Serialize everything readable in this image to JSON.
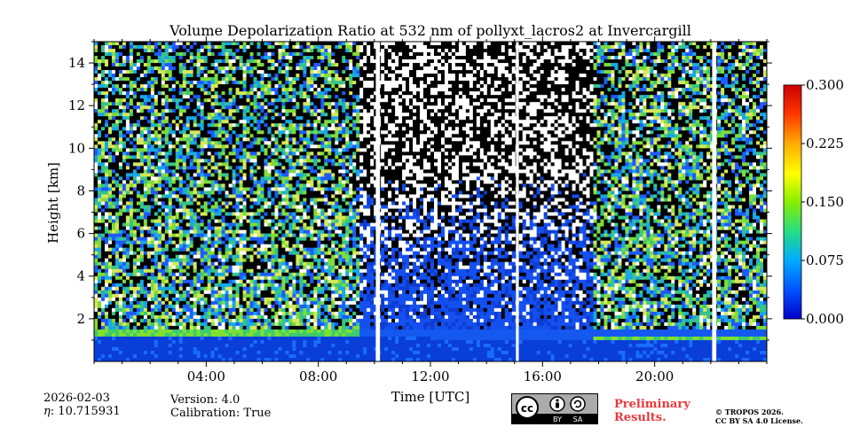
{
  "chart_data": {
    "type": "heatmap",
    "title": "Volume Depolarization Ratio at 532 nm of pollyxt_lacros2 at Invercargill",
    "xlabel": "Time [UTC]",
    "ylabel": "Height [km]",
    "xlim_hours": [
      0,
      24
    ],
    "ylim_km": [
      0,
      15
    ],
    "x_ticks": [
      {
        "hour": 4,
        "label": "04:00"
      },
      {
        "hour": 8,
        "label": "08:00"
      },
      {
        "hour": 12,
        "label": "12:00"
      },
      {
        "hour": 16,
        "label": "16:00"
      },
      {
        "hour": 20,
        "label": "20:00"
      }
    ],
    "y_ticks": [
      {
        "km": 2,
        "label": "2"
      },
      {
        "km": 4,
        "label": "4"
      },
      {
        "km": 6,
        "label": "6"
      },
      {
        "km": 8,
        "label": "8"
      },
      {
        "km": 10,
        "label": "10"
      },
      {
        "km": 12,
        "label": "12"
      },
      {
        "km": 14,
        "label": "14"
      }
    ],
    "colorbar": {
      "min": 0.0,
      "max": 0.3,
      "ticks": [
        "0.000",
        "0.075",
        "0.150",
        "0.225",
        "0.300"
      ],
      "tick_values": [
        0.0,
        0.075,
        0.15,
        0.225,
        0.3
      ],
      "colormap": [
        "#0000c8",
        "#0050ff",
        "#00aaff",
        "#22dd88",
        "#88ee00",
        "#ffff00",
        "#ffaa00",
        "#ff3300",
        "#cc0000"
      ]
    },
    "data_gaps_hours": [
      [
        10.05,
        10.2
      ],
      [
        15.05,
        15.15
      ],
      [
        22.05,
        22.2
      ]
    ],
    "boundary_layer_top_km": {
      "early": 1.2,
      "late": 1.0
    },
    "noisy_periods_hours": [
      [
        0,
        9.5
      ],
      [
        17.8,
        24
      ]
    ]
  },
  "footer": {
    "date": "2026-02-03",
    "eta": ": 10.715931",
    "eta_symbol": "η",
    "version": "Version: 4.0",
    "calibration": "Calibration: True",
    "prelim_line1": "Preliminary",
    "prelim_line2": "Results.",
    "copyright_line1": "© TROPOS 2026.",
    "copyright_line2": "CC BY SA 4.0 License.",
    "cc_by": "BY",
    "cc_sa": "SA"
  }
}
